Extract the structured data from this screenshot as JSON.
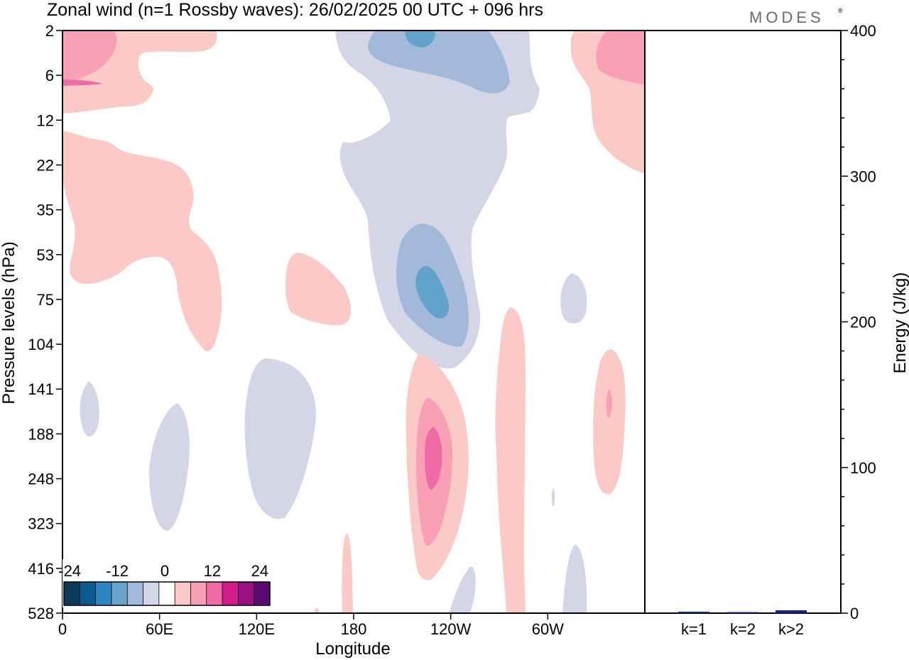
{
  "header": {
    "title": "Zonal wind (n=1 Rossby waves):  26/02/2025  00 UTC  + 096 hrs",
    "brand": "MODES"
  },
  "chart_data": [
    {
      "type": "heatmap",
      "title": "Zonal wind (n=1 Rossby waves):  26/02/2025  00 UTC  + 096 hrs",
      "xlabel": "Longitude",
      "ylabel": "Pressure levels (hPa)",
      "x_ticks": [
        "0",
        "60E",
        "120E",
        "180",
        "120W",
        "60W"
      ],
      "x_tick_degrees": [
        0,
        60,
        120,
        180,
        240,
        300
      ],
      "xlim_degrees": [
        0,
        360
      ],
      "y_ticks": [
        "2",
        "6",
        "12",
        "22",
        "35",
        "53",
        "75",
        "104",
        "141",
        "188",
        "248",
        "323",
        "416",
        "528"
      ],
      "y_scale": "model levels, pressure increasing downward",
      "grid": false,
      "colorbar": {
        "placement": "bottom-left",
        "tick_labels": [
          "-24",
          "-12",
          "0",
          "12",
          "24"
        ],
        "colors": [
          "#0d3a5a",
          "#0b5a8f",
          "#2e86c0",
          "#6aa3cc",
          "#a2b9d9",
          "#d4d6e8",
          "#ffffff",
          "#fccac6",
          "#f99fb6",
          "#ef6ba6",
          "#d11c8c",
          "#9c0f82",
          "#5b0b6f"
        ]
      },
      "fields": {
        "neg_shades": [
          "#d4d6e8",
          "#a2b9d9",
          "#62a3cc"
        ],
        "pos_shades": [
          "#fccac6",
          "#f99fb6",
          "#ef6ba6"
        ]
      }
    },
    {
      "type": "bar",
      "ylabel": "Energy (J/kg)",
      "categories": [
        "k=1",
        "k=2",
        "k>2"
      ],
      "values": [
        1,
        0.5,
        2
      ],
      "ylim": [
        0,
        400
      ],
      "y_ticks": [
        "0",
        "100",
        "200",
        "300",
        "400"
      ],
      "bar_color": "#1a237e"
    }
  ]
}
